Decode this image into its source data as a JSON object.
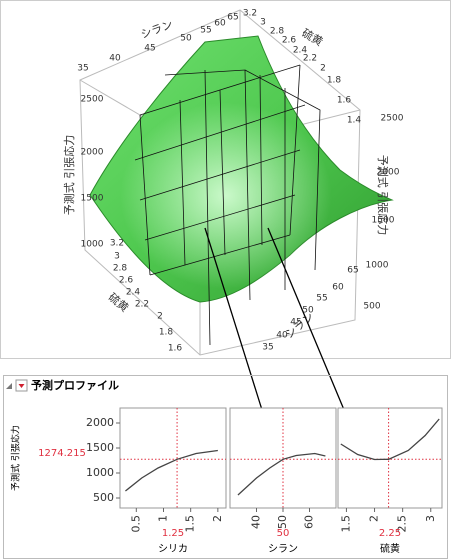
{
  "surface_plot": {
    "axis_titles": [
      "シラン",
      "硫黄",
      "予測式 引張応力",
      "予測式 引張応力",
      "硫黄",
      "シラン"
    ],
    "top_silane_ticks": [
      35,
      40,
      45,
      50,
      55,
      60,
      65
    ],
    "top_sulfur_ticks": [
      3.2,
      3,
      2.8,
      2.6,
      2.4,
      2.2,
      2,
      1.8,
      1.6,
      1.4
    ],
    "left_z_ticks": [
      2500,
      2000,
      1500,
      1000
    ],
    "right_z_ticks": [
      2500,
      2000,
      1500,
      1000,
      500
    ],
    "bottom_sulfur_ticks": [
      3.2,
      3,
      2.8,
      2.6,
      2.4,
      2.2,
      2,
      1.8,
      1.6
    ],
    "bottom_silane_ticks": [
      65,
      60,
      55,
      50,
      45,
      40,
      35
    ]
  },
  "profiler": {
    "title": "予測プロファイル",
    "y_label": "予測式 引張応力",
    "current_value": 1274.215
  },
  "chart_data": [
    {
      "type": "line",
      "x_label": "シリカ",
      "x": [
        0.3,
        0.6,
        0.9,
        1.25,
        1.6,
        2
      ],
      "values": [
        640,
        900,
        1100,
        1274,
        1390,
        1450
      ],
      "current_x": 1.25,
      "xlim": [
        0.2,
        2.15
      ],
      "xticks": [
        0.5,
        1,
        1.5,
        2
      ],
      "ylim": [
        300,
        2300
      ],
      "yticks": [
        500,
        1000,
        1500,
        2000
      ],
      "color": "#444444"
    },
    {
      "type": "line",
      "x_label": "シラン",
      "x": [
        33,
        40,
        45,
        50,
        55,
        62,
        66
      ],
      "values": [
        560,
        900,
        1100,
        1274,
        1350,
        1390,
        1340
      ],
      "current_x": 50,
      "xlim": [
        30,
        70
      ],
      "xticks": [
        40,
        50,
        60
      ],
      "ylim": [
        300,
        2300
      ],
      "color": "#444444"
    },
    {
      "type": "line",
      "x_label": "硫黄",
      "x": [
        1.4,
        1.7,
        2,
        2.25,
        2.6,
        2.9,
        3.15
      ],
      "values": [
        1580,
        1370,
        1270,
        1274,
        1450,
        1750,
        2080
      ],
      "current_x": 2.25,
      "xlim": [
        1.35,
        3.2
      ],
      "xticks": [
        1.5,
        2,
        2.5,
        3
      ],
      "ylim": [
        300,
        2300
      ],
      "color": "#444444"
    }
  ]
}
